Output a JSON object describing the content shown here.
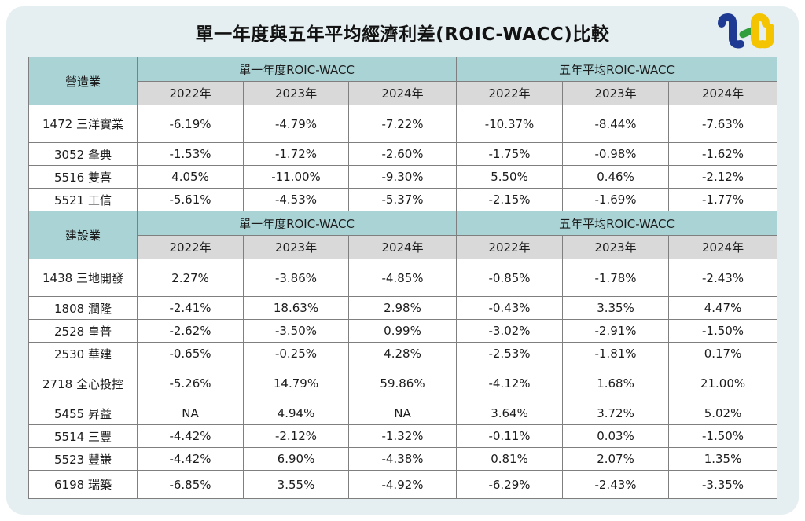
{
  "page": {
    "title": "單一年度與五年平均經濟利差(ROIC-WACC)比較",
    "logo_name": "tej-logo"
  },
  "colors": {
    "card_bg": "#e5eff1",
    "section_header_bg": "#aad3d5",
    "year_header_bg": "#d9d9d9",
    "cell_bg": "#ffffff",
    "border": "#7f7f7f",
    "logo_blue": "#1e3a93",
    "logo_green": "#2f9e3b",
    "logo_yellow": "#f5c400"
  },
  "chart_data": {
    "type": "table",
    "title": "單一年度與五年平均經濟利差(ROIC-WACC)比較",
    "column_groups": [
      "單一年度ROIC-WACC",
      "五年平均ROIC-WACC"
    ],
    "year_columns": [
      "2022年",
      "2023年",
      "2024年"
    ],
    "sections": [
      {
        "industry": "營造業",
        "rows": [
          {
            "company": "1472 三洋實業",
            "single_year": [
              "-6.19%",
              "-4.79%",
              "-7.22%"
            ],
            "five_year_avg": [
              "-10.37%",
              "-8.44%",
              "-7.63%"
            ]
          },
          {
            "company": "3052 夆典",
            "single_year": [
              "-1.53%",
              "-1.72%",
              "-2.60%"
            ],
            "five_year_avg": [
              "-1.75%",
              "-0.98%",
              "-1.62%"
            ]
          },
          {
            "company": "5516 雙喜",
            "single_year": [
              "4.05%",
              "-11.00%",
              "-9.30%"
            ],
            "five_year_avg": [
              "5.50%",
              "0.46%",
              "-2.12%"
            ]
          },
          {
            "company": "5521 工信",
            "single_year": [
              "-5.61%",
              "-4.53%",
              "-5.37%"
            ],
            "five_year_avg": [
              "-2.15%",
              "-1.69%",
              "-1.77%"
            ]
          }
        ]
      },
      {
        "industry": "建設業",
        "rows": [
          {
            "company": "1438 三地開發",
            "single_year": [
              "2.27%",
              "-3.86%",
              "-4.85%"
            ],
            "five_year_avg": [
              "-0.85%",
              "-1.78%",
              "-2.43%"
            ]
          },
          {
            "company": "1808 潤隆",
            "single_year": [
              "-2.41%",
              "18.63%",
              "2.98%"
            ],
            "five_year_avg": [
              "-0.43%",
              "3.35%",
              "4.47%"
            ]
          },
          {
            "company": "2528 皇普",
            "single_year": [
              "-2.62%",
              "-3.50%",
              "0.99%"
            ],
            "five_year_avg": [
              "-3.02%",
              "-2.91%",
              "-1.50%"
            ]
          },
          {
            "company": "2530 華建",
            "single_year": [
              "-0.65%",
              "-0.25%",
              "4.28%"
            ],
            "five_year_avg": [
              "-2.53%",
              "-1.81%",
              "0.17%"
            ]
          },
          {
            "company": "2718 全心投控",
            "single_year": [
              "-5.26%",
              "14.79%",
              "59.86%"
            ],
            "five_year_avg": [
              "-4.12%",
              "1.68%",
              "21.00%"
            ]
          },
          {
            "company": "5455 昇益",
            "single_year": [
              "NA",
              "4.94%",
              "NA"
            ],
            "five_year_avg": [
              "3.64%",
              "3.72%",
              "5.02%"
            ]
          },
          {
            "company": "5514 三豐",
            "single_year": [
              "-4.42%",
              "-2.12%",
              "-1.32%"
            ],
            "five_year_avg": [
              "-0.11%",
              "0.03%",
              "-1.50%"
            ]
          },
          {
            "company": "5523 豐謙",
            "single_year": [
              "-4.42%",
              "6.90%",
              "-4.38%"
            ],
            "five_year_avg": [
              "0.81%",
              "2.07%",
              "1.35%"
            ]
          },
          {
            "company": "6198 瑞築",
            "single_year": [
              "-6.85%",
              "3.55%",
              "-4.92%"
            ],
            "five_year_avg": [
              "-6.29%",
              "-2.43%",
              "-3.35%"
            ]
          }
        ]
      }
    ]
  }
}
